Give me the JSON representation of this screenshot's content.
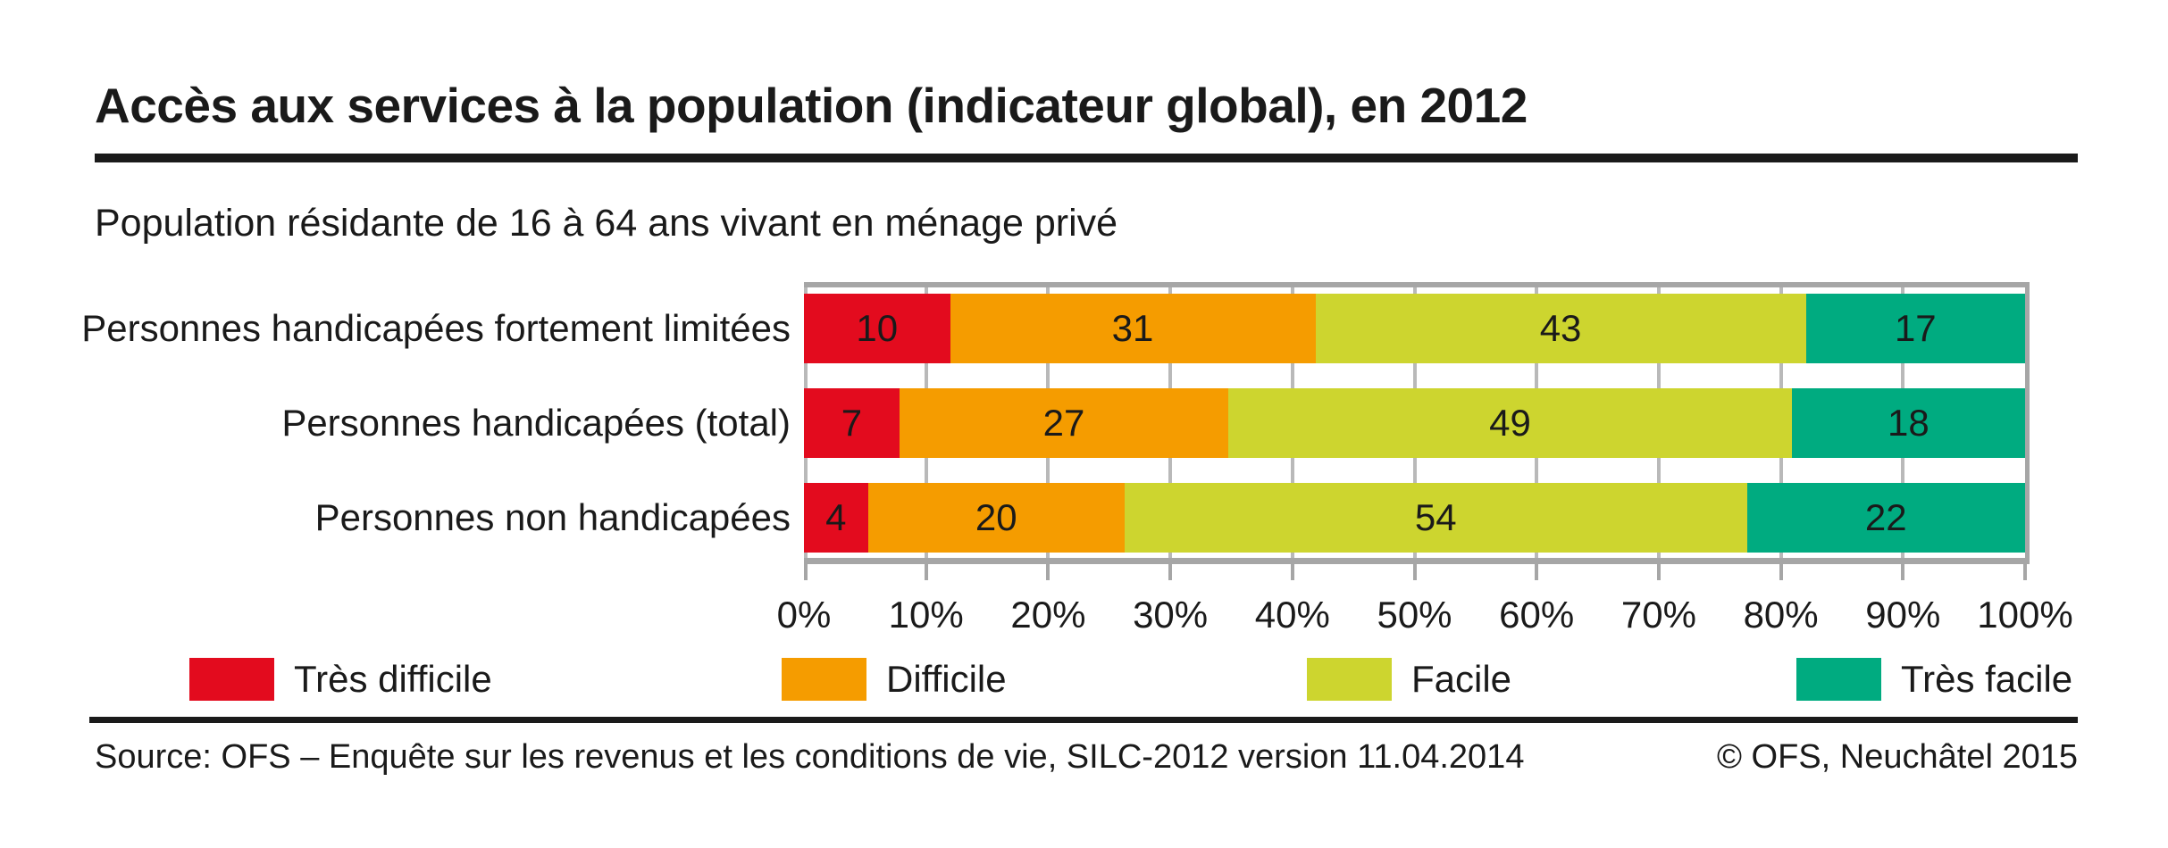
{
  "title": "Accès aux services à la population (indicateur global), en 2012",
  "subtitle": "Population résidante de 16 à 64 ans vivant en ménage privé",
  "chart_data": {
    "type": "bar",
    "variant": "horizontal-stacked",
    "categories": [
      "Personnes handicapées fortement limitées",
      "Personnes handicapées (total)",
      "Personnes non handicapées"
    ],
    "series": [
      {
        "name": "Très difficile",
        "color": "#e30b1e",
        "values": [
          10,
          7,
          4
        ]
      },
      {
        "name": "Difficile",
        "color": "#f59c00",
        "values": [
          31,
          27,
          20
        ]
      },
      {
        "name": "Facile",
        "color": "#cdd52f",
        "values": [
          43,
          49,
          54
        ]
      },
      {
        "name": "Très facile",
        "color": "#00ab80",
        "values": [
          17,
          18,
          22
        ]
      }
    ],
    "x_tick_labels": [
      "0%",
      "10%",
      "20%",
      "30%",
      "40%",
      "50%",
      "60%",
      "70%",
      "80%",
      "90%",
      "100%"
    ],
    "xlim": [
      0,
      100
    ],
    "grid": "vertical",
    "legend_position": "bottom",
    "value_labels": "inside"
  },
  "legend": [
    {
      "label": "Très difficile",
      "color": "#e30b1e"
    },
    {
      "label": "Difficile",
      "color": "#f59c00"
    },
    {
      "label": "Facile",
      "color": "#cdd52f"
    },
    {
      "label": "Très facile",
      "color": "#00ab80"
    }
  ],
  "footer": {
    "source": "Source: OFS – Enquête sur les revenus et les conditions de vie, SILC-2012 version 11.04.2014",
    "copyright": "© OFS, Neuchâtel 2015"
  }
}
